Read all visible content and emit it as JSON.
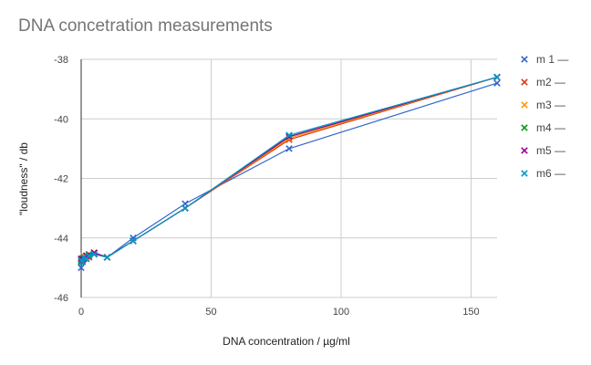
{
  "chart_data": {
    "type": "line",
    "title": "DNA concetration measurements",
    "xlabel": "DNA  concentration / µg/ml",
    "ylabel": "\"loudness\" / db",
    "xlim": [
      0,
      160
    ],
    "ylim": [
      -46,
      -38
    ],
    "xticks": [
      "0",
      "50",
      "100",
      "150"
    ],
    "yticks": [
      "-38",
      "-40",
      "-42",
      "-44",
      "-46"
    ],
    "grid": true,
    "legend_position": "right",
    "x": [
      0,
      0.5,
      1,
      2,
      3,
      5,
      10,
      20,
      40,
      80,
      160
    ],
    "series": [
      {
        "name": "m 1 —",
        "color": "#3366cc",
        "values": [
          -45.0,
          -44.8,
          -44.7,
          -44.7,
          -44.6,
          -44.5,
          -44.65,
          -44.0,
          -42.85,
          -41.0,
          -38.8
        ]
      },
      {
        "name": "m2 —",
        "color": "#dc3912",
        "values": [
          -44.7,
          -44.75,
          -44.65,
          -44.6,
          -44.65,
          -44.5,
          -44.65,
          -44.1,
          -43.0,
          -40.7,
          -38.6
        ]
      },
      {
        "name": "m3 —",
        "color": "#ff9900",
        "values": [
          -44.75,
          -44.7,
          -44.6,
          -44.65,
          -44.6,
          -44.55,
          -44.65,
          -44.1,
          -43.0,
          -40.65,
          -38.6
        ]
      },
      {
        "name": "m4 —",
        "color": "#109618",
        "values": [
          -44.8,
          -44.7,
          -44.65,
          -44.7,
          -44.55,
          -44.5,
          -44.65,
          -44.1,
          -43.0,
          -40.6,
          -38.6
        ]
      },
      {
        "name": "m5 —",
        "color": "#990099",
        "values": [
          -44.7,
          -44.75,
          -44.7,
          -44.6,
          -44.6,
          -44.5,
          -44.65,
          -44.1,
          -43.0,
          -40.6,
          -38.6
        ]
      },
      {
        "name": "m6 —",
        "color": "#0099c6",
        "values": [
          -44.75,
          -44.8,
          -44.65,
          -44.7,
          -44.6,
          -44.55,
          -44.65,
          -44.1,
          -43.0,
          -40.55,
          -38.6
        ]
      }
    ]
  }
}
